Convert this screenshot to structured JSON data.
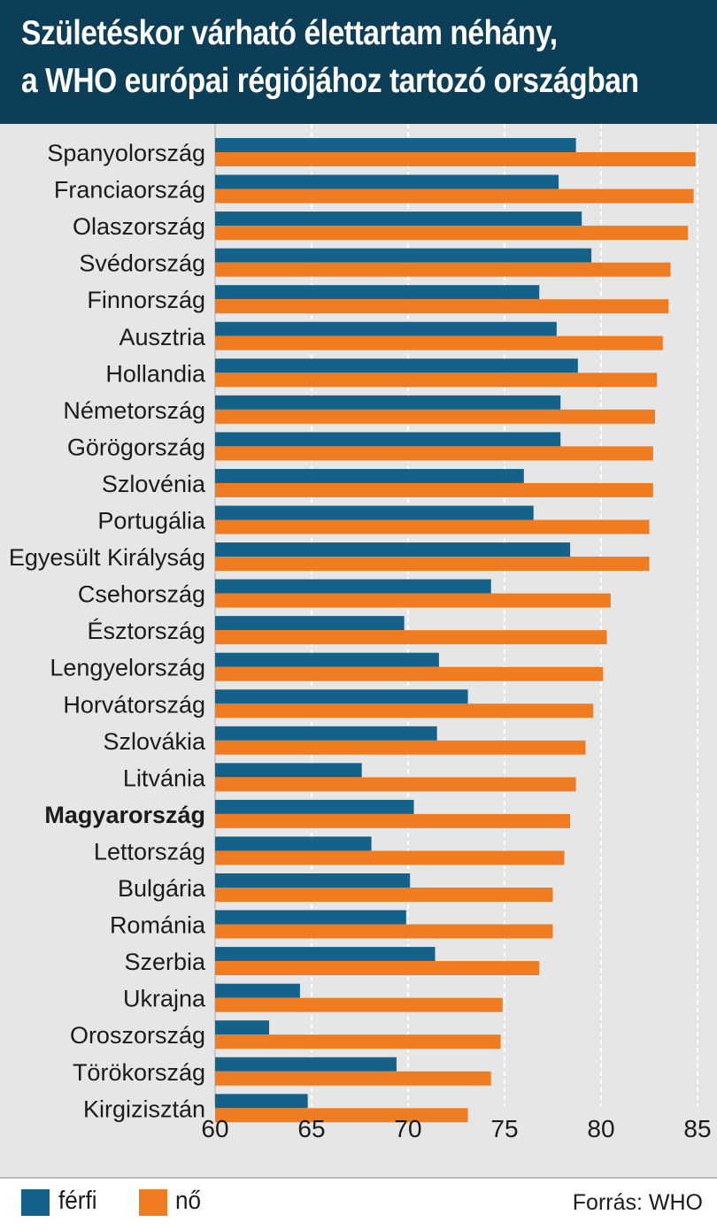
{
  "header": {
    "title_line1": "Születéskor várható élettartam néhány,",
    "title_line2": "a WHO európai régiójához tartozó országban"
  },
  "legend": {
    "male_label": "férfi",
    "female_label": "nő",
    "male_color": "#146189",
    "female_color": "#f07c22"
  },
  "source": "Forrás: WHO",
  "chart_data": {
    "type": "bar",
    "orientation": "horizontal",
    "categories": [
      "Spanyolország",
      "Franciaország",
      "Olaszország",
      "Svédország",
      "Finnország",
      "Ausztria",
      "Hollandia",
      "Németország",
      "Görögország",
      "Szlovénia",
      "Portugália",
      "Egyesült Királyság",
      "Csehország",
      "Észtország",
      "Lengyelország",
      "Horvátország",
      "Szlovákia",
      "Litvánia",
      "Magyarország",
      "Lettország",
      "Bulgária",
      "Románia",
      "Szerbia",
      "Ukrajna",
      "Oroszország",
      "Törökország",
      "Kirgizisztán"
    ],
    "highlight_category": "Magyarország",
    "series": [
      {
        "name": "férfi",
        "color": "#146189",
        "values": [
          78.7,
          77.8,
          79.0,
          79.5,
          76.8,
          77.7,
          78.8,
          77.9,
          77.9,
          76.0,
          76.5,
          78.4,
          74.3,
          69.8,
          71.6,
          73.1,
          71.5,
          67.6,
          70.3,
          68.1,
          70.1,
          69.9,
          71.4,
          64.4,
          62.8,
          69.4,
          64.8
        ]
      },
      {
        "name": "nő",
        "color": "#f07c22",
        "values": [
          84.9,
          84.8,
          84.5,
          83.6,
          83.5,
          83.2,
          82.9,
          82.8,
          82.7,
          82.7,
          82.5,
          82.5,
          80.5,
          80.3,
          80.1,
          79.6,
          79.2,
          78.7,
          78.4,
          78.1,
          77.5,
          77.5,
          76.8,
          74.9,
          74.8,
          74.3,
          73.1
        ]
      }
    ],
    "xlim": [
      60,
      85
    ],
    "xticks": [
      "60",
      "65",
      "70",
      "75",
      "80",
      "85"
    ],
    "xlabel": "",
    "ylabel": "",
    "grid": "vertical dashed",
    "legend_position": "bottom-left"
  }
}
